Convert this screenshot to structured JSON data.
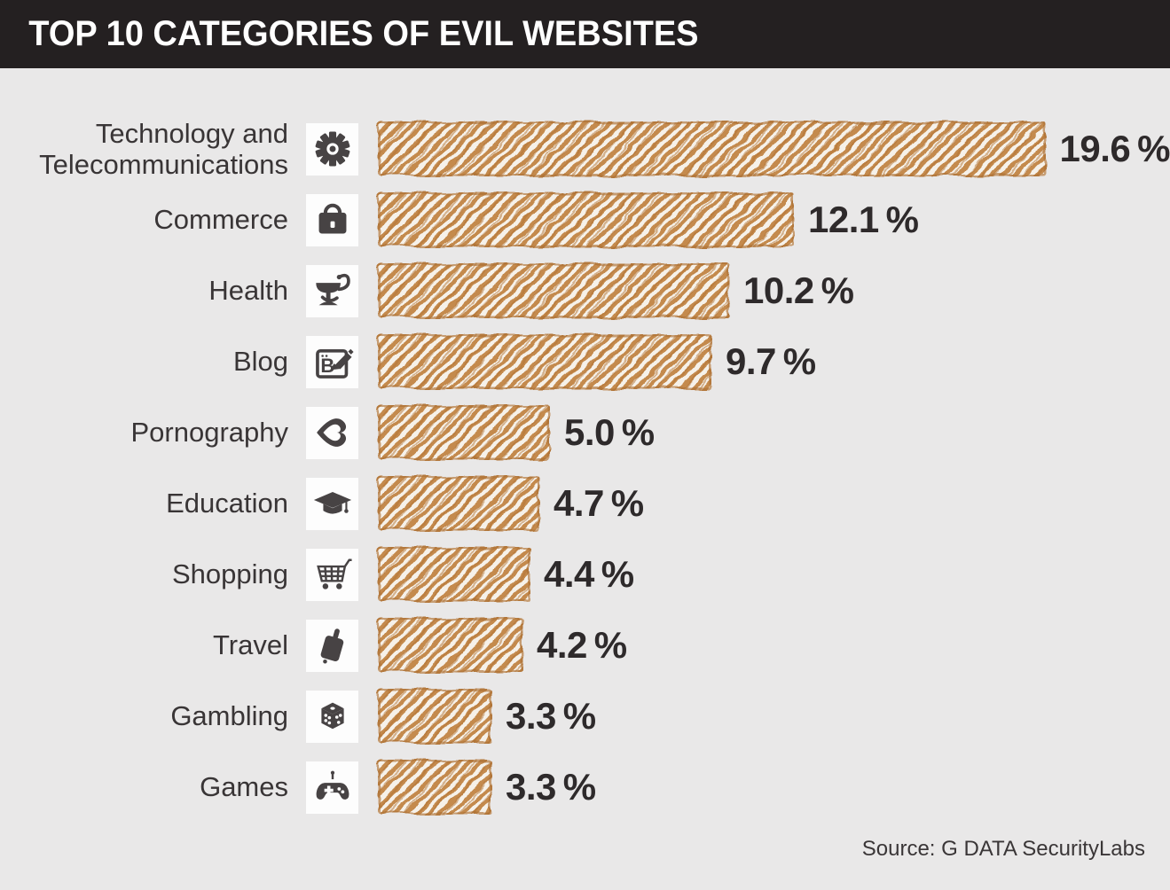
{
  "header": {
    "title": "TOP 10 CATEGORIES OF EVIL WEBSITES"
  },
  "footer": {
    "source": "Source: G DATA SecurityLabs"
  },
  "colors": {
    "header_bg": "#242021",
    "background": "#e9e8e8",
    "bar_orange": "#c48a4d",
    "bar_hatch_light": "#f6f1e9",
    "label_text": "#393536",
    "value_text": "#2e2a2b",
    "icon_glyph": "#474344",
    "icon_tile": "#fdfdfd"
  },
  "chart_data": {
    "type": "bar",
    "orientation": "horizontal",
    "title": "TOP 10 CATEGORIES OF EVIL WEBSITES",
    "source": "Source: G DATA SecurityLabs",
    "unit": "%",
    "xlim": [
      0,
      19.6
    ],
    "grid": false,
    "legend": false,
    "bar_style": "hand-drawn hatched sketch, orange",
    "categories": [
      "Technology and Telecommunications",
      "Commerce",
      "Health",
      "Blog",
      "Pornography",
      "Education",
      "Shopping",
      "Travel",
      "Gambling",
      "Games"
    ],
    "values": [
      19.6,
      12.1,
      10.2,
      9.7,
      5.0,
      4.7,
      4.4,
      4.2,
      3.3,
      3.3
    ],
    "value_labels": [
      "19.6 %",
      "12.1 %",
      "10.2 %",
      "9.7 %",
      "5.0 %",
      "4.7 %",
      "4.4 %",
      "4.2 %",
      "3.3 %",
      "3.3 %"
    ],
    "icons": [
      "gear-icon",
      "briefcase-icon",
      "pharmacy-icon",
      "blog-icon",
      "lips-icon",
      "graduation-cap-icon",
      "shopping-cart-icon",
      "suitcase-icon",
      "dice-icon",
      "gamepad-icon"
    ]
  }
}
